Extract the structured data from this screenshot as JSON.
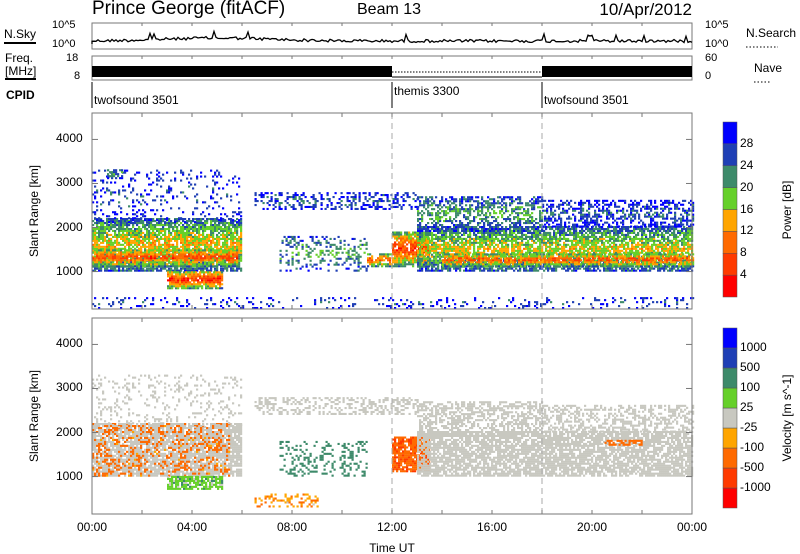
{
  "header": {
    "title": "Prince George (fitACF)",
    "beam": "Beam 13",
    "date": "10/Apr/2012"
  },
  "nsky": {
    "label": "N.Sky",
    "ticks": [
      "10^5",
      "10^0"
    ],
    "right_label": "N.Search",
    "right_ticks": [
      "10^5",
      "10^0"
    ]
  },
  "freq": {
    "label_line1": "Freq.",
    "label_line2": "[MHz]",
    "ticks": [
      "18",
      "8"
    ],
    "right_label": "Nave",
    "right_ticks": [
      "60",
      "0"
    ]
  },
  "cpid": {
    "label": "CPID",
    "segments": [
      {
        "name": "twofsound 3501",
        "start": 0,
        "end": 12
      },
      {
        "name": "themis 3300",
        "start": 12,
        "end": 18
      },
      {
        "name": "twofsound 3501",
        "start": 18,
        "end": 24
      }
    ]
  },
  "chart_data": [
    {
      "type": "heatmap",
      "title": "Power",
      "xlabel": "Time UT",
      "ylabel": "Slant Range [km]",
      "xlim": [
        0,
        24
      ],
      "ylim": [
        150,
        4600
      ],
      "yticks": [
        "1000",
        "2000",
        "3000",
        "4000"
      ],
      "ytick_values": [
        1000,
        2000,
        3000,
        4000
      ],
      "colorbar": {
        "label": "Power [dB]",
        "ticks": [
          "28",
          "24",
          "20",
          "16",
          "12",
          "8",
          "4"
        ],
        "levels": [
          0,
          4,
          8,
          12,
          16,
          20,
          24,
          28,
          32
        ],
        "colors": [
          "#0000ff",
          "#1f3fb5",
          "#3d8a6a",
          "#66d02a",
          "#ffa500",
          "#ff6a00",
          "#ff3a00",
          "#ff0000"
        ]
      },
      "regions": [
        {
          "t": [
            0,
            6
          ],
          "r": [
            1000,
            2200
          ],
          "value": 18,
          "density": 0.8
        },
        {
          "t": [
            0,
            5.8
          ],
          "r": [
            1100,
            1500
          ],
          "value": 26,
          "density": 0.85
        },
        {
          "t": [
            3,
            5.2
          ],
          "r": [
            600,
            1000
          ],
          "value": 28,
          "density": 0.9
        },
        {
          "t": [
            0,
            6
          ],
          "r": [
            2100,
            3300
          ],
          "value": 6,
          "density": 0.15
        },
        {
          "t": [
            0.6,
            1.2
          ],
          "r": [
            3100,
            3300
          ],
          "value": 12,
          "density": 0.7
        },
        {
          "t": [
            7.5,
            11
          ],
          "r": [
            1000,
            1800
          ],
          "value": 12,
          "density": 0.25
        },
        {
          "t": [
            6.5,
            13
          ],
          "r": [
            2400,
            2800
          ],
          "value": 7,
          "density": 0.35
        },
        {
          "t": [
            11,
            12
          ],
          "r": [
            1100,
            1400
          ],
          "value": 24,
          "density": 0.7
        },
        {
          "t": [
            12,
            13.5
          ],
          "r": [
            1100,
            1900
          ],
          "value": 27,
          "density": 0.85
        },
        {
          "t": [
            13,
            24
          ],
          "r": [
            1000,
            2000
          ],
          "value": 17,
          "density": 0.75
        },
        {
          "t": [
            14,
            24
          ],
          "r": [
            1100,
            1400
          ],
          "value": 25,
          "density": 0.8
        },
        {
          "t": [
            13,
            18
          ],
          "r": [
            1900,
            2700
          ],
          "value": 12,
          "density": 0.5
        },
        {
          "t": [
            18,
            24
          ],
          "r": [
            2000,
            2600
          ],
          "value": 7,
          "density": 0.45
        },
        {
          "t": [
            0,
            24
          ],
          "r": [
            150,
            400
          ],
          "value": 6,
          "density": 0.15
        }
      ]
    },
    {
      "type": "heatmap",
      "title": "Velocity",
      "xlabel": "Time UT",
      "ylabel": "Slant Range [km]",
      "xlim": [
        0,
        24
      ],
      "ylim": [
        150,
        4600
      ],
      "yticks": [
        "1000",
        "2000",
        "3000",
        "4000"
      ],
      "ytick_values": [
        1000,
        2000,
        3000,
        4000
      ],
      "colorbar": {
        "label": "Velocity [m s^-1]",
        "ticks": [
          "1000",
          "500",
          "100",
          "25",
          "-25",
          "-100",
          "-500",
          "-1000"
        ],
        "colors": [
          "#0000ff",
          "#1f3fb5",
          "#3d8a6a",
          "#66d02a",
          "#c8c8c0",
          "#ffa500",
          "#ff6a00",
          "#ff3a00",
          "#ff0000"
        ]
      },
      "regions": [
        {
          "t": [
            0,
            6
          ],
          "r": [
            1000,
            2200
          ],
          "value": 0,
          "density": 0.8
        },
        {
          "t": [
            0,
            5.5
          ],
          "r": [
            1000,
            2200
          ],
          "value": -200,
          "density": 0.25
        },
        {
          "t": [
            3,
            5.2
          ],
          "r": [
            700,
            1000
          ],
          "value": 60,
          "density": 0.8
        },
        {
          "t": [
            0,
            6
          ],
          "r": [
            2100,
            3300
          ],
          "value": 0,
          "density": 0.15
        },
        {
          "t": [
            7.5,
            11
          ],
          "r": [
            1000,
            1800
          ],
          "value": 300,
          "density": 0.25
        },
        {
          "t": [
            6.5,
            13
          ],
          "r": [
            2400,
            2800
          ],
          "value": 0,
          "density": 0.4
        },
        {
          "t": [
            6.5,
            9
          ],
          "r": [
            300,
            600
          ],
          "value": -80,
          "density": 0.3
        },
        {
          "t": [
            12,
            13.5
          ],
          "r": [
            1100,
            1900
          ],
          "value": -400,
          "density": 0.85
        },
        {
          "t": [
            13,
            24
          ],
          "r": [
            1000,
            2000
          ],
          "value": 0,
          "density": 0.75
        },
        {
          "t": [
            13,
            18
          ],
          "r": [
            1900,
            2700
          ],
          "value": 0,
          "density": 0.5
        },
        {
          "t": [
            18,
            24
          ],
          "r": [
            2000,
            2600
          ],
          "value": 0,
          "density": 0.45
        },
        {
          "t": [
            20.5,
            22
          ],
          "r": [
            1700,
            1800
          ],
          "value": -300,
          "density": 0.6
        }
      ]
    }
  ],
  "xaxis": {
    "ticks": [
      "00:00",
      "04:00",
      "08:00",
      "12:00",
      "16:00",
      "20:00",
      "00:00"
    ],
    "label": "Time UT"
  }
}
